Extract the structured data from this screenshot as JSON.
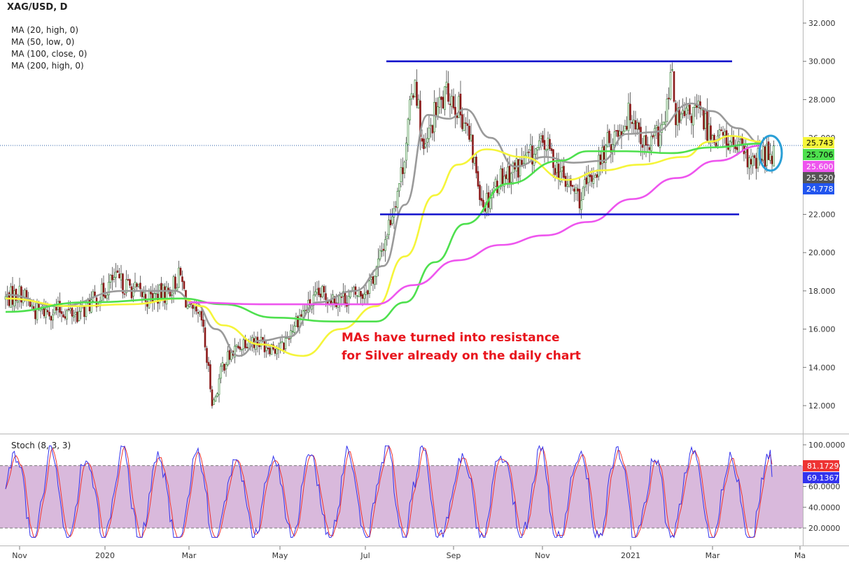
{
  "symbol_title": "XAG/USD, D",
  "ma_legend": [
    "MA (20, high, 0)",
    "MA (50, low, 0)",
    "MA (100, close, 0)",
    "MA (200, high, 0)"
  ],
  "annotation": [
    "MAs have turned into resistance",
    "for Silver already on the daily chart"
  ],
  "stoch_title": "Stoch (8, 3, 3)",
  "colors": {
    "ma20": "#9a9a9a",
    "ma50": "#f5f53a",
    "ma100": "#4ee04e",
    "ma200": "#ee55ee",
    "candle_up": "#1f7a1f",
    "candle_down": "#8b1a1a",
    "support_resistance": "#1010cc",
    "annotation": "#e8141c",
    "circle": "#2a9fd6",
    "stoch_k": "#3333ee",
    "stoch_d": "#ee3333",
    "stoch_band": "#d9b9dc"
  },
  "chart_data": [
    {
      "type": "candlestick",
      "title": "XAG/USD, D",
      "x_ticks": [
        "Nov",
        "2020",
        "Mar",
        "May",
        "Jul",
        "Sep",
        "Nov",
        "2021",
        "Mar",
        "Ma"
      ],
      "y_ticks": [
        "12.000",
        "14.000",
        "16.000",
        "18.000",
        "20.000",
        "22.000",
        "24.000",
        "26.000",
        "28.000",
        "30.000",
        "32.000"
      ],
      "ylim": [
        10.6,
        32.6
      ],
      "price_labels": [
        {
          "value": "25.743",
          "color": "#f5f53a",
          "text_color": "#000000"
        },
        {
          "value": "25.706",
          "color": "#4ee04e",
          "text_color": "#000000"
        },
        {
          "value": "25.600",
          "color": "#ee55ee",
          "text_color": "#ffffff"
        },
        {
          "value": "25.520",
          "color": "#555555",
          "text_color": "#ffffff"
        },
        {
          "value": "24.778",
          "color": "#2255ee",
          "text_color": "#ffffff"
        }
      ],
      "horizontal_levels": [
        30.0,
        22.0
      ],
      "last_close": 25.6,
      "price_path": [
        [
          "2019-10-25",
          17.6
        ],
        [
          "2019-11-05",
          17.9
        ],
        [
          "2019-11-15",
          16.9
        ],
        [
          "2019-12-01",
          17.0
        ],
        [
          "2019-12-15",
          16.8
        ],
        [
          "2020-01-01",
          17.9
        ],
        [
          "2020-01-08",
          18.6
        ],
        [
          "2020-01-20",
          18.2
        ],
        [
          "2020-02-01",
          17.6
        ],
        [
          "2020-02-15",
          17.9
        ],
        [
          "2020-02-24",
          18.8
        ],
        [
          "2020-03-01",
          16.9
        ],
        [
          "2020-03-10",
          16.4
        ],
        [
          "2020-03-18",
          12.0
        ],
        [
          "2020-03-25",
          14.2
        ],
        [
          "2020-04-10",
          15.5
        ],
        [
          "2020-04-25",
          15.2
        ],
        [
          "2020-05-05",
          15.0
        ],
        [
          "2020-05-15",
          16.5
        ],
        [
          "2020-06-01",
          17.8
        ],
        [
          "2020-06-15",
          17.6
        ],
        [
          "2020-07-01",
          17.9
        ],
        [
          "2020-07-10",
          19.0
        ],
        [
          "2020-07-20",
          21.8
        ],
        [
          "2020-07-28",
          24.3
        ],
        [
          "2020-08-06",
          29.3
        ],
        [
          "2020-08-12",
          25.0
        ],
        [
          "2020-08-20",
          27.3
        ],
        [
          "2020-08-30",
          28.4
        ],
        [
          "2020-09-10",
          26.9
        ],
        [
          "2020-09-23",
          22.5
        ],
        [
          "2020-10-05",
          24.0
        ],
        [
          "2020-10-20",
          24.6
        ],
        [
          "2020-11-05",
          25.7
        ],
        [
          "2020-11-18",
          23.8
        ],
        [
          "2020-11-30",
          22.8
        ],
        [
          "2020-12-10",
          24.3
        ],
        [
          "2020-12-20",
          25.8
        ],
        [
          "2021-01-05",
          27.4
        ],
        [
          "2021-01-15",
          25.3
        ],
        [
          "2021-01-28",
          26.7
        ],
        [
          "2021-02-01",
          29.4
        ],
        [
          "2021-02-05",
          26.8
        ],
        [
          "2021-02-20",
          27.4
        ],
        [
          "2021-03-01",
          26.2
        ],
        [
          "2021-03-10",
          26.0
        ],
        [
          "2021-03-20",
          25.4
        ],
        [
          "2021-03-30",
          24.5
        ],
        [
          "2021-04-05",
          25.0
        ],
        [
          "2021-04-12",
          25.3
        ]
      ],
      "series": [
        {
          "name": "MA (20, high, 0)",
          "color": "#9a9a9a",
          "points": [
            [
              "2019-10-25",
              17.8
            ],
            [
              "2019-12-01",
              17.2
            ],
            [
              "2020-01-15",
              18.0
            ],
            [
              "2020-02-20",
              18.0
            ],
            [
              "2020-03-05",
              17.4
            ],
            [
              "2020-03-20",
              16.0
            ],
            [
              "2020-04-05",
              14.6
            ],
            [
              "2020-04-20",
              15.4
            ],
            [
              "2020-05-10",
              15.6
            ],
            [
              "2020-05-30",
              17.4
            ],
            [
              "2020-06-25",
              18.0
            ],
            [
              "2020-07-15",
              19.3
            ],
            [
              "2020-07-30",
              22.5
            ],
            [
              "2020-08-15",
              27.2
            ],
            [
              "2020-08-30",
              27.0
            ],
            [
              "2020-09-10",
              27.5
            ],
            [
              "2020-09-28",
              26.0
            ],
            [
              "2020-10-15",
              24.5
            ],
            [
              "2020-11-05",
              25.0
            ],
            [
              "2020-11-25",
              24.7
            ],
            [
              "2020-12-15",
              24.8
            ],
            [
              "2021-01-01",
              26.2
            ],
            [
              "2021-01-20",
              26.3
            ],
            [
              "2021-02-15",
              27.8
            ],
            [
              "2021-03-01",
              27.4
            ],
            [
              "2021-03-20",
              26.5
            ],
            [
              "2021-04-05",
              25.7
            ]
          ]
        },
        {
          "name": "MA (50, low, 0)",
          "color": "#f5f53a",
          "points": [
            [
              "2019-10-25",
              17.6
            ],
            [
              "2019-12-10",
              17.2
            ],
            [
              "2020-01-20",
              17.3
            ],
            [
              "2020-02-25",
              17.6
            ],
            [
              "2020-03-10",
              17.2
            ],
            [
              "2020-03-25",
              16.2
            ],
            [
              "2020-04-20",
              15.2
            ],
            [
              "2020-05-20",
              14.6
            ],
            [
              "2020-06-15",
              16.0
            ],
            [
              "2020-07-10",
              17.2
            ],
            [
              "2020-07-30",
              19.8
            ],
            [
              "2020-08-20",
              23.0
            ],
            [
              "2020-09-05",
              24.6
            ],
            [
              "2020-09-25",
              25.4
            ],
            [
              "2020-10-20",
              25.0
            ],
            [
              "2020-11-20",
              23.8
            ],
            [
              "2020-12-15",
              24.3
            ],
            [
              "2021-01-10",
              24.6
            ],
            [
              "2021-02-10",
              25.0
            ],
            [
              "2021-02-28",
              25.8
            ],
            [
              "2021-03-15",
              26.1
            ],
            [
              "2021-04-05",
              25.8
            ]
          ]
        },
        {
          "name": "MA (100, close, 0)",
          "color": "#4ee04e",
          "points": [
            [
              "2019-10-25",
              16.9
            ],
            [
              "2019-12-20",
              17.4
            ],
            [
              "2020-02-25",
              17.6
            ],
            [
              "2020-03-25",
              17.3
            ],
            [
              "2020-04-30",
              16.6
            ],
            [
              "2020-06-10",
              16.4
            ],
            [
              "2020-07-10",
              16.4
            ],
            [
              "2020-07-30",
              17.4
            ],
            [
              "2020-08-20",
              19.5
            ],
            [
              "2020-09-10",
              21.5
            ],
            [
              "2020-10-10",
              23.6
            ],
            [
              "2020-11-15",
              24.8
            ],
            [
              "2020-12-05",
              25.3
            ],
            [
              "2021-01-01",
              25.3
            ],
            [
              "2021-02-01",
              25.2
            ],
            [
              "2021-03-01",
              25.5
            ],
            [
              "2021-04-05",
              25.7
            ]
          ]
        },
        {
          "name": "MA (200, high, 0)",
          "color": "#ee55ee",
          "points": [
            [
              "2020-03-01",
              17.4
            ],
            [
              "2020-04-20",
              17.3
            ],
            [
              "2020-06-10",
              17.3
            ],
            [
              "2020-07-10",
              17.3
            ],
            [
              "2020-08-05",
              18.3
            ],
            [
              "2020-09-05",
              19.6
            ],
            [
              "2020-10-05",
              20.4
            ],
            [
              "2020-11-05",
              20.9
            ],
            [
              "2020-12-05",
              21.6
            ],
            [
              "2021-01-05",
              22.8
            ],
            [
              "2021-02-05",
              23.9
            ],
            [
              "2021-03-05",
              24.8
            ],
            [
              "2021-04-05",
              25.6
            ]
          ]
        }
      ]
    },
    {
      "type": "line",
      "title": "Stoch (8, 3, 3)",
      "y_ticks": [
        "20.0000",
        "40.0000",
        "60.0000",
        "80.0000",
        "100.0000"
      ],
      "ylim": [
        8,
        105
      ],
      "band": [
        20,
        80
      ],
      "series": [
        {
          "name": "69.1367",
          "color": "#3333ee",
          "last": 69.1367
        },
        {
          "name": "81.1729",
          "color": "#ee3333",
          "last": 81.1729
        }
      ]
    }
  ]
}
